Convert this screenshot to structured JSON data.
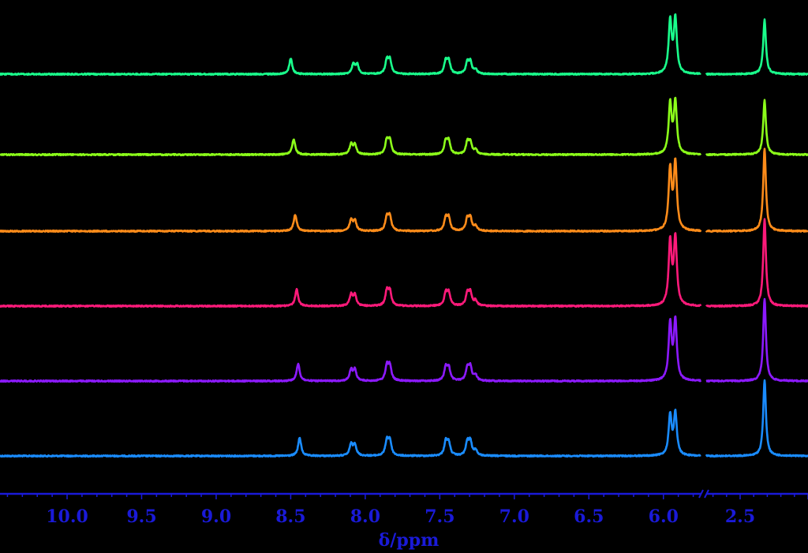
{
  "chart_data": {
    "type": "line",
    "xlabel": "δ/ppm",
    "x_reversed": true,
    "axis_color": "#1a1ad8",
    "axis_break_between": [
      5.75,
      2.75
    ],
    "segments": [
      {
        "xlim": [
          10.45,
          5.75
        ]
      },
      {
        "xlim": [
          2.75,
          2.0
        ]
      }
    ],
    "ticks": [
      {
        "value": 10.0,
        "label": "10.0"
      },
      {
        "value": 9.5,
        "label": "9.5"
      },
      {
        "value": 9.0,
        "label": "9.0"
      },
      {
        "value": 8.5,
        "label": "8.5"
      },
      {
        "value": 8.0,
        "label": "8.0"
      },
      {
        "value": 7.5,
        "label": "7.5"
      },
      {
        "value": 7.0,
        "label": "7.0"
      },
      {
        "value": 6.5,
        "label": "6.5"
      },
      {
        "value": 6.0,
        "label": "6.0"
      },
      {
        "value": 2.5,
        "label": "2.5"
      }
    ],
    "series": [
      {
        "color": "#1a8cff",
        "peaks": [
          {
            "x": 8.44,
            "h": 0.42
          },
          {
            "x": 8.095,
            "h": 0.26
          },
          {
            "x": 8.07,
            "h": 0.26
          },
          {
            "x": 7.855,
            "h": 0.34
          },
          {
            "x": 7.835,
            "h": 0.34
          },
          {
            "x": 7.46,
            "h": 0.32
          },
          {
            "x": 7.44,
            "h": 0.29
          },
          {
            "x": 7.315,
            "h": 0.31
          },
          {
            "x": 7.295,
            "h": 0.31
          },
          {
            "x": 7.26,
            "h": 0.13
          },
          {
            "x": 5.955,
            "h": 0.92
          },
          {
            "x": 5.92,
            "h": 0.97
          },
          {
            "x": 2.32,
            "h": 1.75
          }
        ]
      },
      {
        "color": "#8c1aff",
        "peaks": [
          {
            "x": 8.45,
            "h": 0.4
          },
          {
            "x": 8.095,
            "h": 0.25
          },
          {
            "x": 8.07,
            "h": 0.25
          },
          {
            "x": 7.855,
            "h": 0.34
          },
          {
            "x": 7.835,
            "h": 0.34
          },
          {
            "x": 7.46,
            "h": 0.3
          },
          {
            "x": 7.44,
            "h": 0.29
          },
          {
            "x": 7.315,
            "h": 0.3
          },
          {
            "x": 7.295,
            "h": 0.3
          },
          {
            "x": 7.26,
            "h": 0.13
          },
          {
            "x": 5.955,
            "h": 1.3
          },
          {
            "x": 5.92,
            "h": 1.35
          },
          {
            "x": 2.32,
            "h": 1.9
          }
        ]
      },
      {
        "color": "#ff1a7a",
        "peaks": [
          {
            "x": 8.46,
            "h": 0.38
          },
          {
            "x": 8.095,
            "h": 0.25
          },
          {
            "x": 8.07,
            "h": 0.25
          },
          {
            "x": 7.855,
            "h": 0.33
          },
          {
            "x": 7.835,
            "h": 0.33
          },
          {
            "x": 7.46,
            "h": 0.29
          },
          {
            "x": 7.44,
            "h": 0.29
          },
          {
            "x": 7.315,
            "h": 0.29
          },
          {
            "x": 7.295,
            "h": 0.29
          },
          {
            "x": 7.26,
            "h": 0.12
          },
          {
            "x": 5.955,
            "h": 1.45
          },
          {
            "x": 5.92,
            "h": 1.55
          },
          {
            "x": 2.32,
            "h": 2.0
          }
        ]
      },
      {
        "color": "#ff8c1a",
        "peaks": [
          {
            "x": 8.47,
            "h": 0.38
          },
          {
            "x": 8.095,
            "h": 0.24
          },
          {
            "x": 8.07,
            "h": 0.24
          },
          {
            "x": 7.855,
            "h": 0.32
          },
          {
            "x": 7.835,
            "h": 0.32
          },
          {
            "x": 7.46,
            "h": 0.29
          },
          {
            "x": 7.44,
            "h": 0.29
          },
          {
            "x": 7.315,
            "h": 0.28
          },
          {
            "x": 7.295,
            "h": 0.28
          },
          {
            "x": 7.26,
            "h": 0.11
          },
          {
            "x": 5.955,
            "h": 1.4
          },
          {
            "x": 5.92,
            "h": 1.55
          },
          {
            "x": 2.32,
            "h": 1.9
          }
        ]
      },
      {
        "color": "#8cff1a",
        "peaks": [
          {
            "x": 8.48,
            "h": 0.36
          },
          {
            "x": 8.095,
            "h": 0.23
          },
          {
            "x": 8.07,
            "h": 0.23
          },
          {
            "x": 7.855,
            "h": 0.32
          },
          {
            "x": 7.835,
            "h": 0.32
          },
          {
            "x": 7.46,
            "h": 0.3
          },
          {
            "x": 7.44,
            "h": 0.3
          },
          {
            "x": 7.315,
            "h": 0.27
          },
          {
            "x": 7.295,
            "h": 0.27
          },
          {
            "x": 7.26,
            "h": 0.11
          },
          {
            "x": 5.955,
            "h": 1.15
          },
          {
            "x": 5.92,
            "h": 1.2
          },
          {
            "x": 2.32,
            "h": 1.25
          }
        ]
      },
      {
        "color": "#1aff8c",
        "peaks": [
          {
            "x": 8.5,
            "h": 0.36
          },
          {
            "x": 8.08,
            "h": 0.22
          },
          {
            "x": 8.055,
            "h": 0.22
          },
          {
            "x": 7.855,
            "h": 0.31
          },
          {
            "x": 7.835,
            "h": 0.31
          },
          {
            "x": 7.46,
            "h": 0.29
          },
          {
            "x": 7.44,
            "h": 0.29
          },
          {
            "x": 7.315,
            "h": 0.26
          },
          {
            "x": 7.295,
            "h": 0.26
          },
          {
            "x": 7.26,
            "h": 0.1
          },
          {
            "x": 5.955,
            "h": 1.2
          },
          {
            "x": 5.92,
            "h": 1.25
          },
          {
            "x": 2.32,
            "h": 1.25
          }
        ]
      }
    ]
  }
}
